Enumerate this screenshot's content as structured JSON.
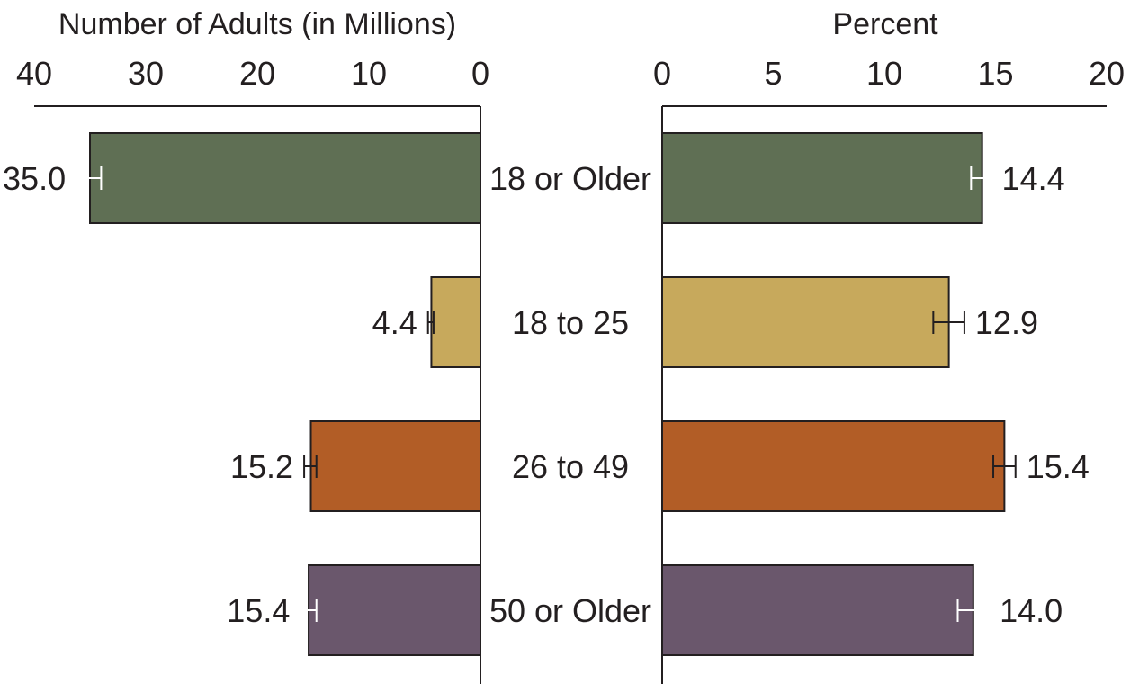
{
  "chart_data": [
    {
      "type": "bar",
      "orientation": "horizontal",
      "direction": "right-to-left",
      "title": "Number of Adults (in Millions)",
      "categories": [
        "18 or Older",
        "18 to 25",
        "26 to 49",
        "50 or Older"
      ],
      "values": [
        35.0,
        4.4,
        15.2,
        15.4
      ],
      "value_labels": [
        "35.0",
        "4.4",
        "15.2",
        "15.4"
      ],
      "error_bars": [
        [
          34.0,
          36.2
        ],
        [
          4.2,
          4.7
        ],
        [
          14.7,
          15.8
        ],
        [
          14.7,
          16.1
        ]
      ],
      "xlim": [
        0,
        40
      ],
      "ticks": [
        0,
        10,
        20,
        30,
        40
      ],
      "tick_labels": [
        "0",
        "10",
        "20",
        "30",
        "40"
      ],
      "grid": false
    },
    {
      "type": "bar",
      "orientation": "horizontal",
      "direction": "left-to-right",
      "title": "Percent",
      "categories": [
        "18 or Older",
        "18 to 25",
        "26 to 49",
        "50 or Older"
      ],
      "values": [
        14.4,
        12.9,
        15.4,
        14.0
      ],
      "value_labels": [
        "14.4",
        "12.9",
        "15.4",
        "14.0"
      ],
      "error_bars": [
        [
          13.9,
          14.8
        ],
        [
          12.2,
          13.6
        ],
        [
          14.9,
          15.9
        ],
        [
          13.3,
          14.7
        ]
      ],
      "xlim": [
        0,
        20
      ],
      "ticks": [
        0,
        5,
        10,
        15,
        20
      ],
      "tick_labels": [
        "0",
        "5",
        "10",
        "15",
        "20"
      ],
      "grid": false
    }
  ],
  "series_colors": [
    "#5f6f54",
    "#c7a95c",
    "#b25d26",
    "#6a576c"
  ],
  "bar_outline_color": "#231f20",
  "error_bar_colors": [
    "#ffffff",
    "#231f20",
    "#231f20",
    "#ffffff"
  ]
}
